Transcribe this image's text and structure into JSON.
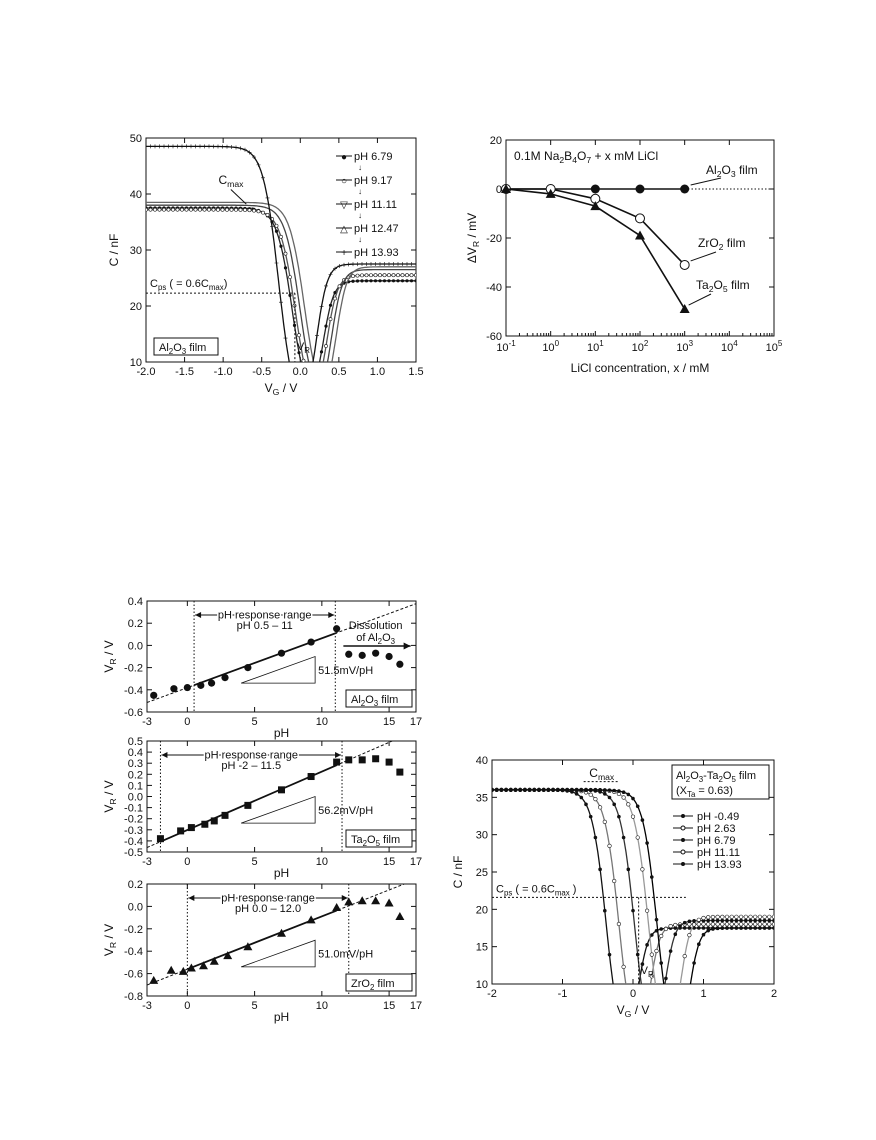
{
  "chart_data": [
    {
      "id": "cv_al2o3",
      "type": "line",
      "xlim": [
        -2.0,
        1.5
      ],
      "ylim": [
        10,
        50
      ],
      "xticks": [
        "-2.0",
        "-1.5",
        "-1.0",
        "-0.5",
        "0.0",
        "0.5",
        "1.0",
        "1.5"
      ],
      "yticks": [
        "10",
        "20",
        "30",
        "40",
        "50"
      ],
      "xlabel": "V_G / V",
      "ylabel": "C / nF",
      "film_label": "Al2O3 film",
      "cmax_label": "C_max",
      "cps_label": "C_ps ( = 0.6C_max)",
      "vr_label": "V_R",
      "legend": [
        "pH 6.79",
        "pH 9.17",
        "pH 11.11",
        "pH 12.47",
        "pH 13.93"
      ],
      "legend_arrow": "↓",
      "series": [
        {
          "name": "pH 6.79",
          "cmax": 37.5,
          "vmid": -0.1,
          "vmin": 0.17,
          "cmin": 14.8,
          "cright": 24.5
        },
        {
          "name": "pH 9.17",
          "cmax": 37.2,
          "vmid": -0.06,
          "vmin": 0.22,
          "cmin": 15.0,
          "cright": 25.5
        },
        {
          "name": "pH 11.11",
          "cmax": 38.0,
          "vmid": 0.0,
          "vmin": 0.28,
          "cmin": 15.2,
          "cright": 26.5
        },
        {
          "name": "pH 12.47",
          "cmax": 38.5,
          "vmid": 0.06,
          "vmin": 0.34,
          "cmin": 15.5,
          "cright": 27.0
        },
        {
          "name": "pH 13.93",
          "cmax": 48.5,
          "vmid": -0.28,
          "vmin": 0.09,
          "cmin": 15.0,
          "cright": 27.5
        }
      ]
    },
    {
      "id": "dvr_licl",
      "type": "line",
      "xscale": "log",
      "xlim": [
        0.1,
        100000
      ],
      "ylim": [
        -60,
        20
      ],
      "xticks": [
        "10-1",
        "100",
        "101",
        "102",
        "103",
        "104",
        "105"
      ],
      "yticks": [
        "-60",
        "-40",
        "-20",
        "0",
        "20"
      ],
      "xlabel": "LiCl concentration, x / mM",
      "ylabel": "ΔV_R / mV",
      "header": "0.1M Na2B4O7 + x mM LiCl",
      "series": [
        {
          "name": "Al2O3 film",
          "marker": "filled-circle",
          "x": [
            0.1,
            1,
            10,
            100,
            1000
          ],
          "y": [
            0,
            0,
            0,
            0,
            0
          ]
        },
        {
          "name": "ZrO2 film",
          "marker": "open-circle",
          "x": [
            0.1,
            1,
            10,
            100,
            1000
          ],
          "y": [
            0,
            0,
            -4,
            -12,
            -31
          ]
        },
        {
          "name": "Ta2O5 film",
          "marker": "filled-triangle",
          "x": [
            0.1,
            1,
            10,
            100,
            1000
          ],
          "y": [
            0,
            -2,
            -7,
            -19,
            -49
          ]
        }
      ]
    },
    {
      "id": "vr_al2o3",
      "type": "scatter",
      "xlim": [
        -3,
        17
      ],
      "ylim": [
        -0.6,
        0.4
      ],
      "xticks": [
        "-3",
        "0",
        "5",
        "10",
        "15",
        "17"
      ],
      "yticks": [
        "-0.6",
        "-0.4",
        "-0.2",
        "0.0",
        "0.2",
        "0.4"
      ],
      "xlabel": "pH",
      "ylabel": "V_R / V",
      "range_label": "pH response range",
      "range_text": "pH 0.5 – 11",
      "range": [
        0.5,
        11
      ],
      "slope_label": "51.5mV/pH",
      "film_label": "Al2O3 film",
      "note": "Dissolution of Al2O3",
      "points": {
        "x": [
          -2.5,
          -1,
          0,
          1,
          1.8,
          2.8,
          4.5,
          7,
          9.2,
          11.1
        ],
        "y": [
          -0.45,
          -0.39,
          -0.38,
          -0.36,
          -0.34,
          -0.29,
          -0.2,
          -0.07,
          0.03,
          0.15
        ]
      },
      "outliers": {
        "x": [
          12,
          13,
          14,
          15,
          15.8
        ],
        "y": [
          -0.08,
          -0.09,
          -0.07,
          -0.1,
          -0.17
        ]
      }
    },
    {
      "id": "vr_ta2o5",
      "type": "scatter",
      "xlim": [
        -3,
        17
      ],
      "ylim": [
        -0.5,
        0.5
      ],
      "xticks": [
        "-3",
        "0",
        "5",
        "10",
        "15",
        "17"
      ],
      "yticks": [
        "-0.5",
        "-0.4",
        "-0.3",
        "-0.2",
        "-0.1",
        "0.0",
        "0.1",
        "0.2",
        "0.3",
        "0.4",
        "0.5"
      ],
      "xlabel": "pH",
      "ylabel": "V_R / V",
      "range_label": "pH response range",
      "range_text": "pH -2 – 11.5",
      "range": [
        -2,
        11.5
      ],
      "slope_label": "56.2mV/pH",
      "film_label": "Ta2O5 film",
      "points": {
        "x": [
          -2,
          -0.5,
          0.3,
          1.3,
          2,
          2.8,
          4.5,
          7,
          9.2,
          11.1
        ],
        "y": [
          -0.38,
          -0.31,
          -0.28,
          -0.25,
          -0.22,
          -0.17,
          -0.08,
          0.06,
          0.18,
          0.31
        ]
      },
      "outliers": {
        "x": [
          12,
          13,
          14,
          15,
          15.8
        ],
        "y": [
          0.33,
          0.33,
          0.34,
          0.31,
          0.22
        ]
      }
    },
    {
      "id": "vr_zro2",
      "type": "scatter",
      "xlim": [
        -3,
        17
      ],
      "ylim": [
        -0.8,
        0.2
      ],
      "xticks": [
        "-3",
        "0",
        "5",
        "10",
        "15",
        "17"
      ],
      "yticks": [
        "-0.8",
        "-0.6",
        "-0.4",
        "-0.2",
        "0.0",
        "0.2"
      ],
      "xlabel": "pH",
      "ylabel": "V_R / V",
      "range_label": "pH response range",
      "range_text": "pH 0.0 – 12.0",
      "range": [
        0,
        12
      ],
      "slope_label": "51.0mV/pH",
      "film_label": "ZrO2 film",
      "points": {
        "x": [
          -2.5,
          -1.2,
          -0.3,
          0.3,
          1.2,
          2,
          3,
          4.5,
          7,
          9.2,
          11.1
        ],
        "y": [
          -0.66,
          -0.57,
          -0.58,
          -0.55,
          -0.53,
          -0.49,
          -0.44,
          -0.36,
          -0.24,
          -0.12,
          -0.01
        ]
      },
      "outliers": {
        "x": [
          12,
          13,
          14,
          15,
          15.8
        ],
        "y": [
          0.04,
          0.05,
          0.05,
          0.03,
          -0.09
        ]
      }
    },
    {
      "id": "cv_alta",
      "type": "line",
      "xlim": [
        -2,
        2
      ],
      "ylim": [
        10,
        40
      ],
      "xticks": [
        "-2",
        "-1",
        "0",
        "1",
        "2"
      ],
      "yticks": [
        "10",
        "15",
        "20",
        "25",
        "30",
        "35",
        "40"
      ],
      "xlabel": "V_G / V",
      "ylabel": "C / nF",
      "film_label_1": "Al2O3-Ta2O5 film",
      "film_label_2": "(X_Ta = 0.63)",
      "cmax_label": "C_max",
      "cps_label": "C_ps ( = 0.6C_max )",
      "vr_label": "V_R",
      "legend": [
        "pH -0.49",
        "pH 2.63",
        "pH 6.79",
        "pH 11.11",
        "pH 13.93"
      ],
      "series": [
        {
          "name": "pH -0.49",
          "cmax": 36,
          "vmid": -0.38,
          "vmin": -0.05,
          "cmin": 14.0,
          "cright": 17.5
        },
        {
          "name": "pH 2.63",
          "cmax": 36,
          "vmid": -0.2,
          "vmin": 0.12,
          "cmin": 14.3,
          "cright": 18.0
        },
        {
          "name": "pH 6.79",
          "cmax": 36,
          "vmid": 0.02,
          "vmin": 0.33,
          "cmin": 14.6,
          "cright": 18.5
        },
        {
          "name": "pH 11.11",
          "cmax": 36,
          "vmid": 0.22,
          "vmin": 0.55,
          "cmin": 14.4,
          "cright": 19.0
        },
        {
          "name": "pH 13.93",
          "cmax": 36,
          "vmid": 0.34,
          "vmin": 0.68,
          "cmin": 14.0,
          "cright": 17.5
        }
      ]
    }
  ]
}
